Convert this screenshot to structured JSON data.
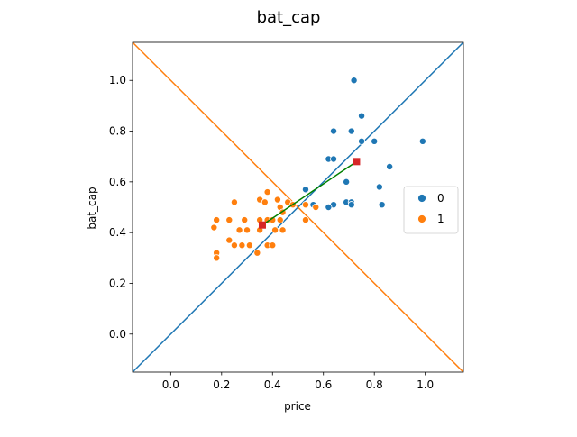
{
  "chart_data": {
    "type": "scatter",
    "title": "bat_cap",
    "xlabel": "price",
    "ylabel": "bat_cap",
    "xlim": [
      -0.15,
      1.15
    ],
    "ylim": [
      -0.15,
      1.15
    ],
    "x_ticks": [
      0.0,
      0.2,
      0.4,
      0.6,
      0.8,
      1.0
    ],
    "y_ticks": [
      0.0,
      0.2,
      0.4,
      0.6,
      0.8,
      1.0
    ],
    "x_tick_labels": [
      "0.0",
      "0.2",
      "0.4",
      "0.6",
      "0.8",
      "1.0"
    ],
    "y_tick_labels": [
      "0.0",
      "0.2",
      "0.4",
      "0.6",
      "0.8",
      "1.0"
    ],
    "grid": false,
    "legend_position": "right",
    "series": [
      {
        "name": "0",
        "color": "#1f77b4",
        "points": [
          [
            0.72,
            1.0
          ],
          [
            0.75,
            0.86
          ],
          [
            0.64,
            0.8
          ],
          [
            0.71,
            0.8
          ],
          [
            0.75,
            0.76
          ],
          [
            0.8,
            0.76
          ],
          [
            0.99,
            0.76
          ],
          [
            0.62,
            0.69
          ],
          [
            0.64,
            0.69
          ],
          [
            0.86,
            0.66
          ],
          [
            0.69,
            0.6
          ],
          [
            0.53,
            0.57
          ],
          [
            0.82,
            0.58
          ],
          [
            0.69,
            0.52
          ],
          [
            0.71,
            0.52
          ],
          [
            0.71,
            0.51
          ],
          [
            0.64,
            0.51
          ],
          [
            0.62,
            0.5
          ],
          [
            0.83,
            0.51
          ],
          [
            0.56,
            0.51
          ]
        ]
      },
      {
        "name": "1",
        "color": "#ff7f0e",
        "points": [
          [
            0.38,
            0.56
          ],
          [
            0.42,
            0.53
          ],
          [
            0.35,
            0.53
          ],
          [
            0.37,
            0.52
          ],
          [
            0.25,
            0.52
          ],
          [
            0.46,
            0.52
          ],
          [
            0.48,
            0.51
          ],
          [
            0.53,
            0.51
          ],
          [
            0.57,
            0.5
          ],
          [
            0.43,
            0.5
          ],
          [
            0.44,
            0.48
          ],
          [
            0.18,
            0.45
          ],
          [
            0.23,
            0.45
          ],
          [
            0.29,
            0.45
          ],
          [
            0.35,
            0.45
          ],
          [
            0.38,
            0.45
          ],
          [
            0.4,
            0.45
          ],
          [
            0.43,
            0.45
          ],
          [
            0.53,
            0.45
          ],
          [
            0.17,
            0.42
          ],
          [
            0.27,
            0.41
          ],
          [
            0.3,
            0.41
          ],
          [
            0.35,
            0.41
          ],
          [
            0.41,
            0.41
          ],
          [
            0.44,
            0.41
          ],
          [
            0.23,
            0.37
          ],
          [
            0.25,
            0.35
          ],
          [
            0.28,
            0.35
          ],
          [
            0.31,
            0.35
          ],
          [
            0.38,
            0.35
          ],
          [
            0.4,
            0.35
          ],
          [
            0.34,
            0.32
          ],
          [
            0.18,
            0.32
          ],
          [
            0.18,
            0.3
          ],
          [
            0.36,
            0.43
          ]
        ]
      }
    ],
    "centroids": [
      {
        "series": "0",
        "x": 0.73,
        "y": 0.68,
        "color": "#d62728"
      },
      {
        "series": "1",
        "x": 0.36,
        "y": 0.43,
        "color": "#d62728"
      }
    ],
    "centroid_line": {
      "from": [
        0.36,
        0.43
      ],
      "to": [
        0.73,
        0.68
      ],
      "color": "#008000"
    },
    "reference_lines": [
      {
        "kind": "y=x",
        "color": "#1f77b4"
      },
      {
        "kind": "y=1-x",
        "color": "#ff7f0e"
      }
    ]
  }
}
